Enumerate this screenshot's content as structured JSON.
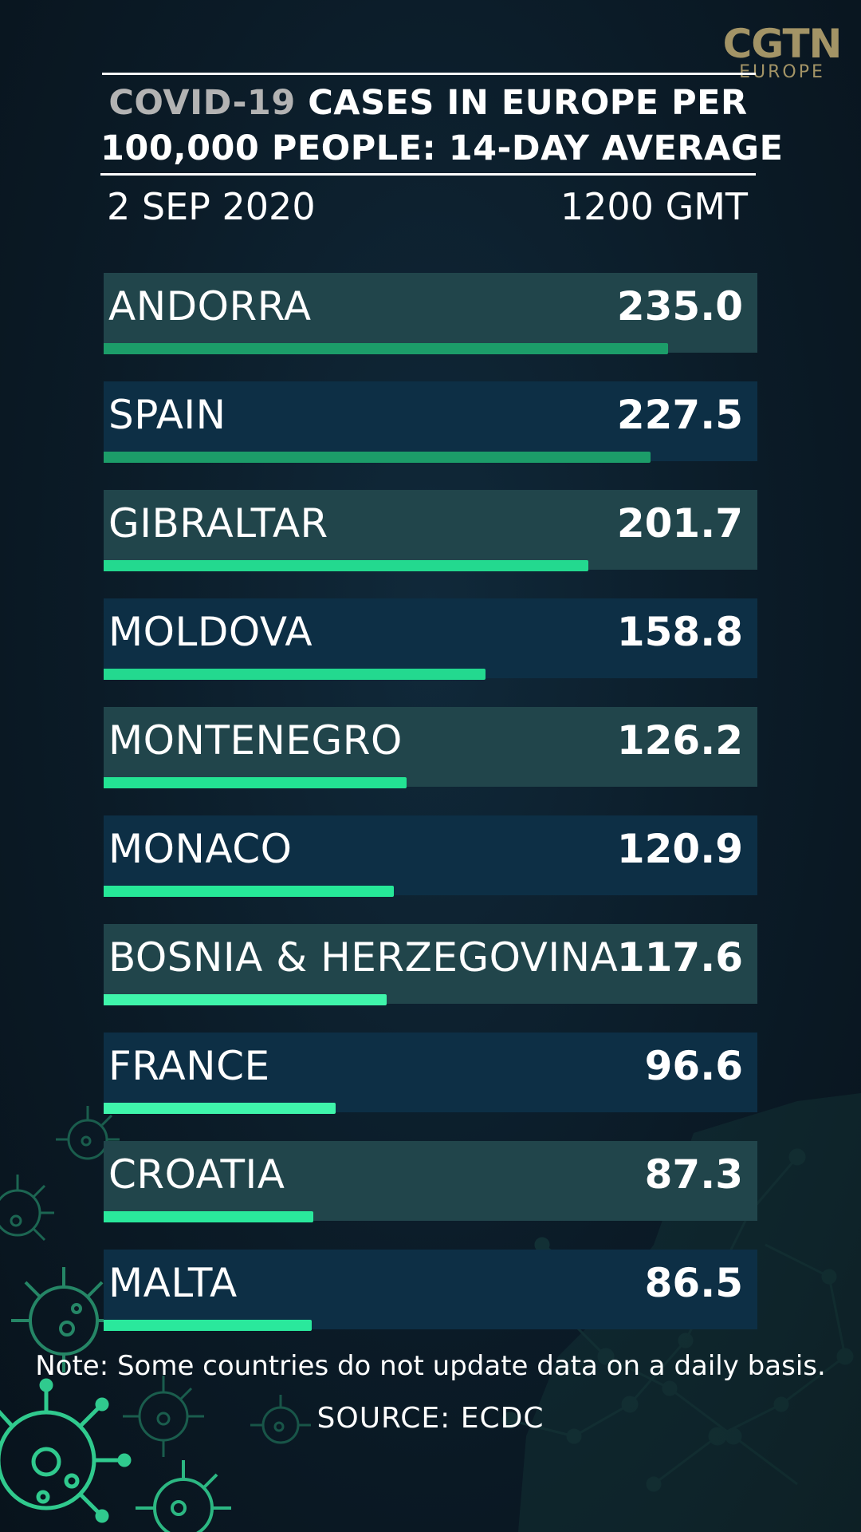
{
  "branding": {
    "logo_main": "CGTN",
    "logo_sub": "EUROPE",
    "color": "#a39466"
  },
  "header": {
    "title_highlight": "COVID-19",
    "title_rest_line1": "CASES IN EUROPE PER",
    "title_line2": "100,000 PEOPLE: 14-DAY AVERAGE",
    "date": "2 SEP 2020",
    "time": "1200 GMT"
  },
  "chart_data": {
    "type": "bar",
    "orientation": "horizontal",
    "title": "COVID-19 CASES IN EUROPE PER 100,000 PEOPLE: 14-DAY AVERAGE",
    "categories": [
      "ANDORRA",
      "SPAIN",
      "GIBRALTAR",
      "MOLDOVA",
      "MONTENEGRO",
      "MONACO",
      "BOSNIA & HERZEGOVINA",
      "FRANCE",
      "CROATIA",
      "MALTA"
    ],
    "values": [
      235.0,
      227.5,
      201.7,
      158.8,
      126.2,
      120.9,
      117.6,
      96.6,
      87.3,
      86.5
    ],
    "value_labels": [
      "235.0",
      "227.5",
      "201.7",
      "158.8",
      "126.2",
      "120.9",
      "117.6",
      "96.6",
      "87.3",
      "86.5"
    ],
    "xlim": [
      0,
      272
    ],
    "grid": false,
    "legend": "none",
    "bar_colors": [
      "#1c9d69",
      "#1c9d69",
      "#23d98f",
      "#23d98f",
      "#23e393",
      "#26e898",
      "#3ff5ab",
      "#3ff5ab",
      "#2ae89c",
      "#2ae89c"
    ]
  },
  "footer": {
    "note": "Note: Some countries do not update data on a daily basis.",
    "source": "SOURCE: ECDC"
  }
}
